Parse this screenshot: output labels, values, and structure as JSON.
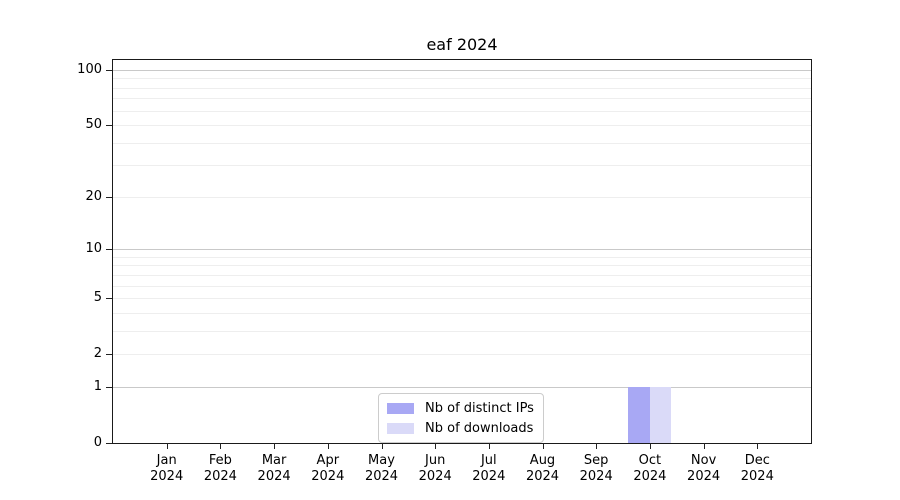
{
  "chart_data": {
    "type": "bar",
    "title": "eaf 2024",
    "categories": [
      "Jan 2024",
      "Feb 2024",
      "Mar 2024",
      "Apr 2024",
      "May 2024",
      "Jun 2024",
      "Jul 2024",
      "Aug 2024",
      "Sep 2024",
      "Oct 2024",
      "Nov 2024",
      "Dec 2024"
    ],
    "series": [
      {
        "name": "Nb of distinct IPs",
        "color": "#a8a8f4",
        "values": [
          0,
          0,
          0,
          0,
          0,
          0,
          0,
          0,
          0,
          1,
          0,
          0
        ]
      },
      {
        "name": "Nb of downloads",
        "color": "#dadaf8",
        "values": [
          0,
          0,
          0,
          0,
          0,
          0,
          0,
          0,
          0,
          1,
          0,
          0
        ]
      }
    ],
    "y_axis": {
      "scale": "log1p",
      "ticks": [
        0,
        1,
        2,
        5,
        10,
        20,
        50,
        100
      ],
      "max": 113,
      "major_gridlines": [
        1,
        10,
        100
      ],
      "minor_gridlines": [
        2,
        3,
        4,
        5,
        6,
        7,
        8,
        9,
        20,
        30,
        40,
        50,
        60,
        70,
        80,
        90
      ]
    },
    "x_axis": {
      "tick_count": 12
    },
    "legend": {
      "position": "bottom-center"
    },
    "colors": {
      "grid_major": "#c9c9c9",
      "grid_minor": "#eeeeee",
      "spine": "#1a1a1a"
    }
  }
}
